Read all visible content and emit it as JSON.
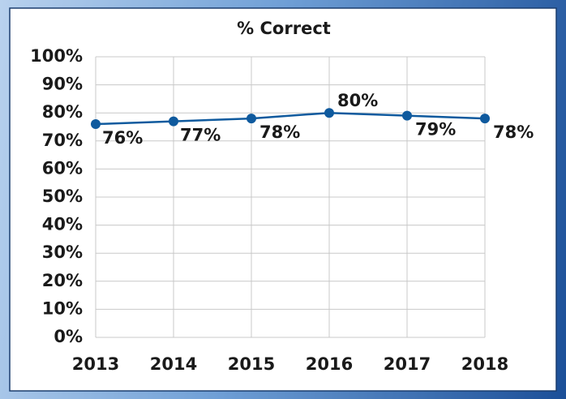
{
  "chart_data": {
    "type": "line",
    "title": "% Correct",
    "categories": [
      "2013",
      "2014",
      "2015",
      "2016",
      "2017",
      "2018"
    ],
    "values": [
      76,
      77,
      78,
      80,
      79,
      78
    ],
    "value_labels": [
      "76%",
      "77%",
      "78%",
      "80%",
      "79%",
      "78%"
    ],
    "color": "#0f5a9e",
    "ylim": [
      0,
      100
    ],
    "yticks": [
      {
        "value": 0,
        "label": "0%"
      },
      {
        "value": 10,
        "label": "10%"
      },
      {
        "value": 20,
        "label": "20%"
      },
      {
        "value": 30,
        "label": "30%"
      },
      {
        "value": 40,
        "label": "40%"
      },
      {
        "value": 50,
        "label": "50%"
      },
      {
        "value": 60,
        "label": "60%"
      },
      {
        "value": 70,
        "label": "70%"
      },
      {
        "value": 80,
        "label": "80%"
      },
      {
        "value": 90,
        "label": "90%"
      },
      {
        "value": 100,
        "label": "100%"
      }
    ],
    "grid": true
  }
}
